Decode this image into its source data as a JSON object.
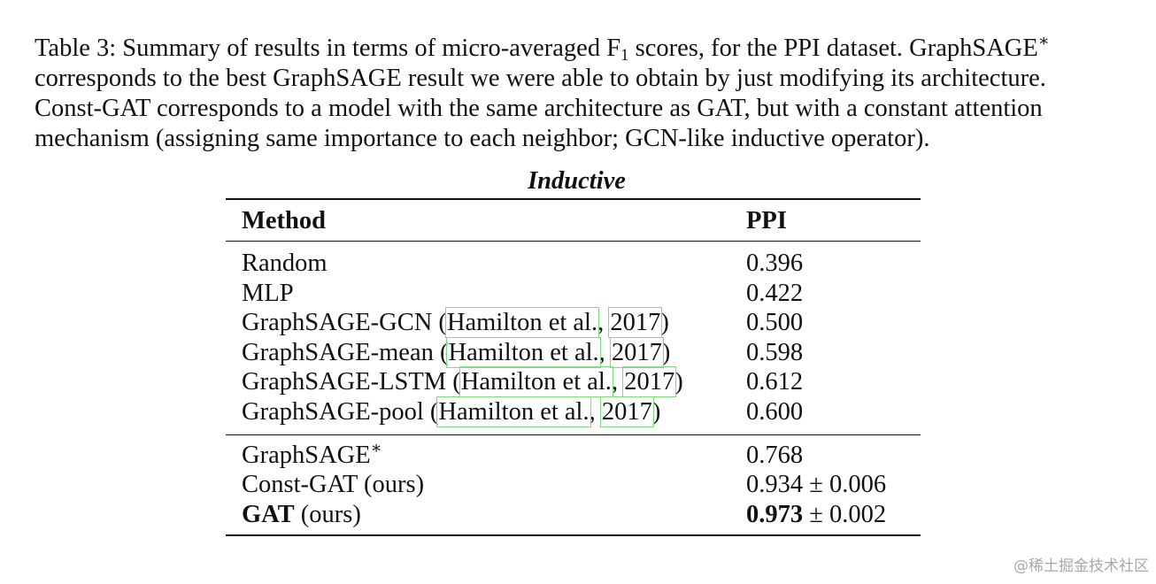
{
  "caption": {
    "line1_pre": "Table 3: Summary of results in terms of micro-averaged F",
    "line1_sub": "1",
    "line1_mid": " scores, for the PPI dataset. GraphSAGE",
    "line1_sup": "∗",
    "line2": "corresponds to the best GraphSAGE result we were able to obtain by just modifying its architecture.",
    "line3": "Const-GAT corresponds to a model with the same architecture as GAT, but with a constant attention",
    "line4": "mechanism (assigning same importance to each neighbor; GCN-like inductive operator)."
  },
  "table": {
    "group_title": "Inductive",
    "headers": {
      "method": "Method",
      "ppi": "PPI"
    },
    "baseline_rows": [
      {
        "method": "Random",
        "ppi": "0.396"
      },
      {
        "method": "MLP",
        "ppi": "0.422"
      },
      {
        "method": "GraphSAGE-GCN (",
        "cite_author": "Hamilton et al.",
        "cite_sep": ", ",
        "cite_year": "2017",
        "cite_close": ")",
        "ppi": "0.500"
      },
      {
        "method": "GraphSAGE-mean (",
        "cite_author": "Hamilton et al.",
        "cite_sep": ", ",
        "cite_year": "2017",
        "cite_close": ")",
        "ppi": "0.598"
      },
      {
        "method": "GraphSAGE-LSTM (",
        "cite_author": "Hamilton et al.",
        "cite_sep": ", ",
        "cite_year": "2017",
        "cite_close": ")",
        "ppi": "0.612"
      },
      {
        "method": "GraphSAGE-pool (",
        "cite_author": "Hamilton et al.",
        "cite_sep": ", ",
        "cite_year": "2017",
        "cite_close": ")",
        "ppi": "0.600"
      }
    ],
    "ours_rows": [
      {
        "method": "GraphSAGE",
        "sup": "∗",
        "ppi": "0.768"
      },
      {
        "method": "Const-GAT (ours)",
        "ppi": "0.934 ± 0.006"
      },
      {
        "method_bold": "GAT",
        "method_rest": " (ours)",
        "ppi_bold": "0.973",
        "ppi_rest": " ± 0.002"
      }
    ]
  },
  "watermark": "@稀土掘金技术社区"
}
